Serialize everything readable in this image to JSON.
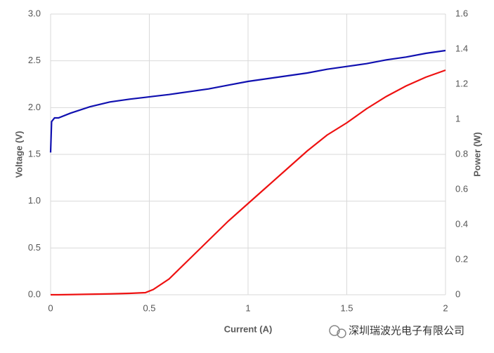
{
  "chart_data": {
    "type": "line",
    "x_label": "Current (A)",
    "y_label": "Voltage (V)",
    "y2_label": "Power (W)",
    "watermark": "深圳瑞波光电子有限公司",
    "x": [
      0,
      0.005,
      0.02,
      0.04,
      0.1,
      0.2,
      0.3,
      0.4,
      0.48,
      0.52,
      0.6,
      0.7,
      0.8,
      0.9,
      1.0,
      1.1,
      1.2,
      1.3,
      1.4,
      1.5,
      1.6,
      1.7,
      1.8,
      1.9,
      2.0
    ],
    "series": [
      {
        "name": "Voltage",
        "color": "#1010b0",
        "values": [
          1.52,
          1.85,
          1.89,
          1.89,
          1.94,
          2.01,
          2.06,
          2.09,
          2.11,
          2.12,
          2.14,
          2.17,
          2.2,
          2.24,
          2.28,
          2.31,
          2.34,
          2.37,
          2.41,
          2.44,
          2.47,
          2.51,
          2.54,
          2.58,
          2.61
        ]
      },
      {
        "name": "Power",
        "color": "#ee1111",
        "axis": "y2",
        "values": [
          0,
          0,
          0,
          0,
          0.001,
          0.003,
          0.005,
          0.008,
          0.012,
          0.03,
          0.09,
          0.2,
          0.31,
          0.42,
          0.52,
          0.62,
          0.72,
          0.82,
          0.91,
          0.98,
          1.06,
          1.13,
          1.19,
          1.24,
          1.28
        ]
      }
    ],
    "xlim": [
      0,
      2
    ],
    "xticks": [
      0,
      0.5,
      1,
      1.5,
      2
    ],
    "ylim": [
      0,
      3
    ],
    "yticks": [
      {
        "value": 0,
        "label": "0.0"
      },
      0.5,
      {
        "value": 1,
        "label": "1.0"
      },
      1.5,
      {
        "value": 2,
        "label": "2.0"
      },
      2.5,
      {
        "value": 3,
        "label": "3.0"
      }
    ],
    "y2lim": [
      0,
      1.6
    ],
    "y2ticks": [
      0,
      0.2,
      0.4,
      0.6,
      0.8,
      1,
      1.2,
      1.4,
      1.6
    ],
    "grid": true
  }
}
